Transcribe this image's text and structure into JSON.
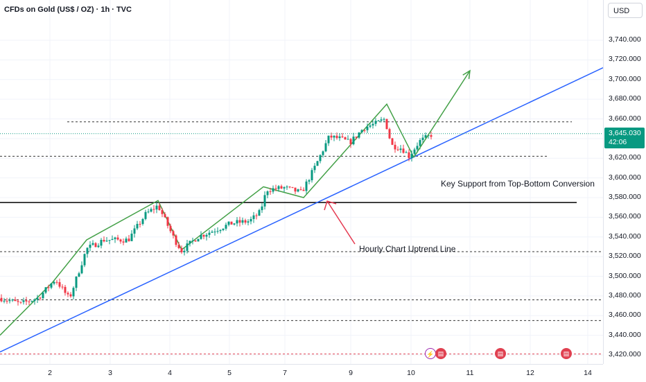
{
  "header": {
    "title": "CFDs on Gold (US$ / OZ) · 1h · TVC"
  },
  "price_axis": {
    "currency_button": "USD",
    "labels": [
      "3,740.000",
      "3,720.000",
      "3,700.000",
      "3,680.000",
      "3,660.000",
      "3,640.000",
      "3,620.000",
      "3,600.000",
      "3,580.000",
      "3,560.000",
      "3,540.000",
      "3,520.000",
      "3,500.000",
      "3,480.000",
      "3,460.000",
      "3,440.000",
      "3,420.000"
    ],
    "last_price": "3,645.030",
    "countdown": "42:06"
  },
  "time_axis": {
    "labels": [
      "2",
      "3",
      "4",
      "5",
      "7",
      "9",
      "10",
      "11",
      "12",
      "14"
    ]
  },
  "annotations": {
    "key_support": "Key Support from Top-Bottom Conversion",
    "uptrend_line": "Hourly Chart Uptrend Line"
  },
  "colors": {
    "up_candle": "#089981",
    "down_candle": "#f23645",
    "trend_line": "#2962ff",
    "zigzag": "#43a047",
    "arrow_red": "#e53950",
    "event_red": "#e04050",
    "event_purple": "#9c27b0"
  },
  "events": {
    "flash_icon": "⚡"
  },
  "chart_data": {
    "type": "candlestick",
    "title": "CFDs on Gold (US$ / OZ) · 1h · TVC",
    "y_range": [
      3415,
      3755
    ],
    "x_ticks": [
      "2",
      "3",
      "4",
      "5",
      "7",
      "9",
      "10",
      "11",
      "12",
      "14"
    ],
    "last_price": 3645.03,
    "horizontal_levels": [
      3657,
      3622,
      3575,
      3525,
      3476,
      3455,
      3421
    ],
    "key_support_level": 3575,
    "uptrend_line": {
      "from": [
        0,
        3423
      ],
      "to": [
        870,
        3712
      ]
    },
    "zigzag_path": [
      [
        0,
        3440
      ],
      [
        76,
        3494
      ],
      [
        125,
        3537
      ],
      [
        228,
        3577
      ],
      [
        262,
        3527
      ],
      [
        380,
        3591
      ],
      [
        438,
        3580
      ],
      [
        558,
        3675
      ],
      [
        597,
        3621
      ]
    ],
    "projection": [
      [
        597,
        3621
      ],
      [
        678,
        3709
      ]
    ],
    "waypoints": [
      [
        0,
        3478
      ],
      [
        30,
        3472
      ],
      [
        55,
        3478
      ],
      [
        80,
        3497
      ],
      [
        100,
        3477
      ],
      [
        125,
        3528
      ],
      [
        150,
        3537
      ],
      [
        185,
        3537
      ],
      [
        210,
        3563
      ],
      [
        228,
        3572
      ],
      [
        252,
        3537
      ],
      [
        262,
        3526
      ],
      [
        285,
        3540
      ],
      [
        310,
        3547
      ],
      [
        335,
        3554
      ],
      [
        360,
        3556
      ],
      [
        375,
        3565
      ],
      [
        385,
        3588
      ],
      [
        410,
        3590
      ],
      [
        435,
        3585
      ],
      [
        455,
        3612
      ],
      [
        475,
        3642
      ],
      [
        490,
        3640
      ],
      [
        505,
        3636
      ],
      [
        525,
        3651
      ],
      [
        545,
        3656
      ],
      [
        555,
        3660
      ],
      [
        565,
        3633
      ],
      [
        580,
        3630
      ],
      [
        590,
        3622
      ],
      [
        605,
        3637
      ],
      [
        625,
        3645
      ]
    ]
  }
}
